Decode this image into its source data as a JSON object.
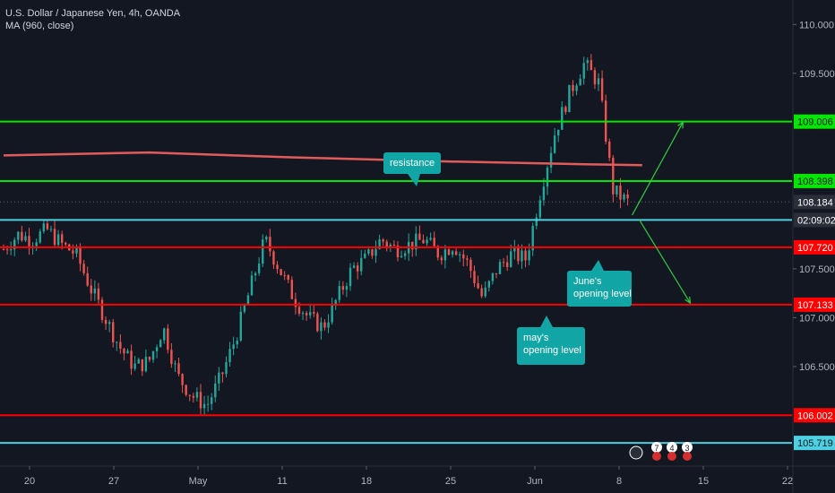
{
  "header": {
    "title": "U.S. Dollar / Japanese Yen, 4h, OANDA",
    "indicator": "MA (960, close)"
  },
  "colors": {
    "background": "#131722",
    "up": "#26a69a",
    "down": "#ef5350",
    "green_level": "#00e600",
    "red_level": "#ff0000",
    "cyan_level": "#4dd0e1",
    "ma": "#e25b5b",
    "callout": "#12a5a5",
    "arrow": "#2ecc40"
  },
  "chart_data": {
    "type": "candlestick",
    "symbol": "USDJPY",
    "timeframe": "4h",
    "ylim": [
      105.5,
      110.25
    ],
    "y_ticks": [
      110.0,
      109.5,
      107.5,
      107.0,
      106.5
    ],
    "y_tick_labels": [
      "110.000",
      "109.500",
      "107.500",
      "107.000",
      "106.500"
    ],
    "x_ticks": [
      "20",
      "27",
      "May",
      "11",
      "18",
      "25",
      "Jun",
      "8",
      "15",
      "22"
    ],
    "current_price": "108.184",
    "countdown": "02:09:02",
    "price_path": [
      [
        0,
        107.7
      ],
      [
        1,
        107.85
      ],
      [
        2,
        107.8
      ],
      [
        3,
        107.9
      ],
      [
        4,
        107.75
      ],
      [
        5,
        107.65
      ],
      [
        6,
        107.3
      ],
      [
        7,
        107.0
      ],
      [
        8,
        106.7
      ],
      [
        9,
        106.5
      ],
      [
        10,
        106.55
      ],
      [
        11,
        106.9
      ],
      [
        12,
        106.4
      ],
      [
        13,
        106.2
      ],
      [
        14,
        106.1
      ],
      [
        15,
        106.4
      ],
      [
        16,
        106.8
      ],
      [
        17,
        107.3
      ],
      [
        18,
        107.8
      ],
      [
        19,
        107.5
      ],
      [
        20,
        107.2
      ],
      [
        21,
        107.0
      ],
      [
        22,
        106.9
      ],
      [
        23,
        107.2
      ],
      [
        24,
        107.5
      ],
      [
        25,
        107.6
      ],
      [
        26,
        107.8
      ],
      [
        27,
        107.7
      ],
      [
        28,
        107.75
      ],
      [
        29,
        107.8
      ],
      [
        30,
        107.65
      ],
      [
        31,
        107.75
      ],
      [
        32,
        107.55
      ],
      [
        33,
        107.2
      ],
      [
        34,
        107.5
      ],
      [
        35,
        107.65
      ],
      [
        36,
        107.6
      ],
      [
        37,
        108.3
      ],
      [
        38,
        108.9
      ],
      [
        39,
        109.3
      ],
      [
        40,
        109.6
      ],
      [
        41,
        109.4
      ],
      [
        42,
        108.3
      ],
      [
        43,
        108.184
      ]
    ],
    "levels": [
      {
        "price": 109.006,
        "label": "109.006",
        "color": "green"
      },
      {
        "price": 108.398,
        "label": "108.398",
        "color": "green"
      },
      {
        "price": 108.0,
        "label": "",
        "color": "cyan"
      },
      {
        "price": 107.72,
        "label": "107.720",
        "color": "red"
      },
      {
        "price": 107.133,
        "label": "107.133",
        "color": "red"
      },
      {
        "price": 106.002,
        "label": "106.002",
        "color": "red"
      },
      {
        "price": 105.719,
        "label": "105.719",
        "color": "cyan"
      }
    ],
    "moving_average": {
      "name": "MA (960, close)",
      "points": [
        [
          0,
          108.66
        ],
        [
          10,
          108.69
        ],
        [
          20,
          108.64
        ],
        [
          30,
          108.6
        ],
        [
          40,
          108.57
        ],
        [
          44,
          108.56
        ]
      ]
    },
    "annotations": [
      {
        "text": [
          "resistance"
        ],
        "anchor": "resistance"
      },
      {
        "text": [
          "June's",
          "opening level"
        ],
        "anchor": "june"
      },
      {
        "text": [
          "may's",
          "opening level"
        ],
        "anchor": "may"
      }
    ],
    "projections": [
      {
        "from": [
          43,
          108.05
        ],
        "to": [
          46.5,
          109.0
        ],
        "direction": "up"
      },
      {
        "from": [
          43.5,
          108.0
        ],
        "to": [
          47,
          107.15
        ],
        "direction": "down"
      }
    ],
    "event_badges": [
      "7",
      "4",
      "3"
    ]
  }
}
